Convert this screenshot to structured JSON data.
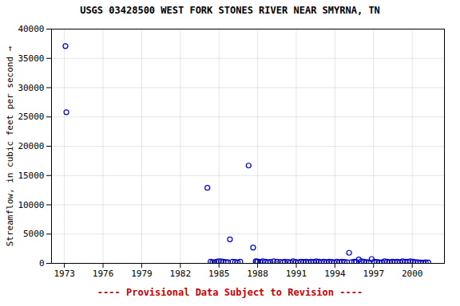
{
  "chart_data": {
    "type": "scatter",
    "title": "USGS 03428500 WEST FORK STONES RIVER NEAR SMYRNA, TN",
    "y_label": "Streamflow, in cubic feet per second",
    "annotation": "---- Provisional Data Subject to Revision ----",
    "color": "#0000CC",
    "marker": "open circle",
    "grid": true,
    "xlim": [
      1972.0,
      2002.5
    ],
    "ylim": [
      0,
      40000
    ],
    "xticks": [
      1973,
      1976,
      1979,
      1982,
      1985,
      1988,
      1991,
      1994,
      1997,
      2000
    ],
    "yticks": [
      0,
      5000,
      10000,
      15000,
      20000,
      25000,
      30000,
      35000,
      40000
    ],
    "x": [
      1973.08,
      1973.15,
      1984.1,
      1984.35,
      1984.5,
      1984.65,
      1984.8,
      1984.95,
      1985.15,
      1985.35,
      1985.55,
      1985.7,
      1985.85,
      1986.05,
      1986.25,
      1986.45,
      1986.65,
      1987.3,
      1987.65,
      1987.85,
      1987.95,
      1988.0,
      1988.2,
      1988.4,
      1988.6,
      1988.8,
      1989.0,
      1989.25,
      1989.5,
      1989.75,
      1989.95,
      1990.1,
      1990.35,
      1990.55,
      1990.75,
      1990.95,
      1991.15,
      1991.35,
      1991.55,
      1991.75,
      1991.95,
      1992.15,
      1992.35,
      1992.55,
      1992.75,
      1992.95,
      1993.15,
      1993.35,
      1993.55,
      1993.75,
      1993.95,
      1994.15,
      1994.35,
      1994.55,
      1994.75,
      1994.95,
      1995.1,
      1995.3,
      1995.5,
      1995.65,
      1995.85,
      1996.05,
      1996.25,
      1996.45,
      1996.65,
      1996.85,
      1997.05,
      1997.25,
      1997.45,
      1997.65,
      1997.85,
      1998.05,
      1998.25,
      1998.45,
      1998.65,
      1998.85,
      1999.05,
      1999.25,
      1999.45,
      1999.65,
      1999.85,
      2000.05,
      2000.25,
      2000.45,
      2000.65,
      2000.85,
      2001.05,
      2001.25
    ],
    "values": [
      37100,
      25800,
      12900,
      300,
      200,
      180,
      250,
      350,
      350,
      280,
      220,
      190,
      4100,
      300,
      250,
      200,
      280,
      16700,
      2700,
      350,
      280,
      320,
      260,
      350,
      280,
      220,
      260,
      350,
      300,
      250,
      200,
      300,
      250,
      200,
      350,
      260,
      180,
      300,
      250,
      280,
      220,
      300,
      250,
      350,
      280,
      220,
      280,
      220,
      300,
      250,
      200,
      280,
      220,
      300,
      250,
      200,
      1800,
      220,
      280,
      250,
      650,
      350,
      280,
      220,
      180,
      750,
      300,
      250,
      200,
      180,
      350,
      280,
      220,
      300,
      250,
      280,
      220,
      350,
      280,
      300,
      350,
      280,
      220,
      180,
      150,
      120,
      180,
      150
    ]
  }
}
